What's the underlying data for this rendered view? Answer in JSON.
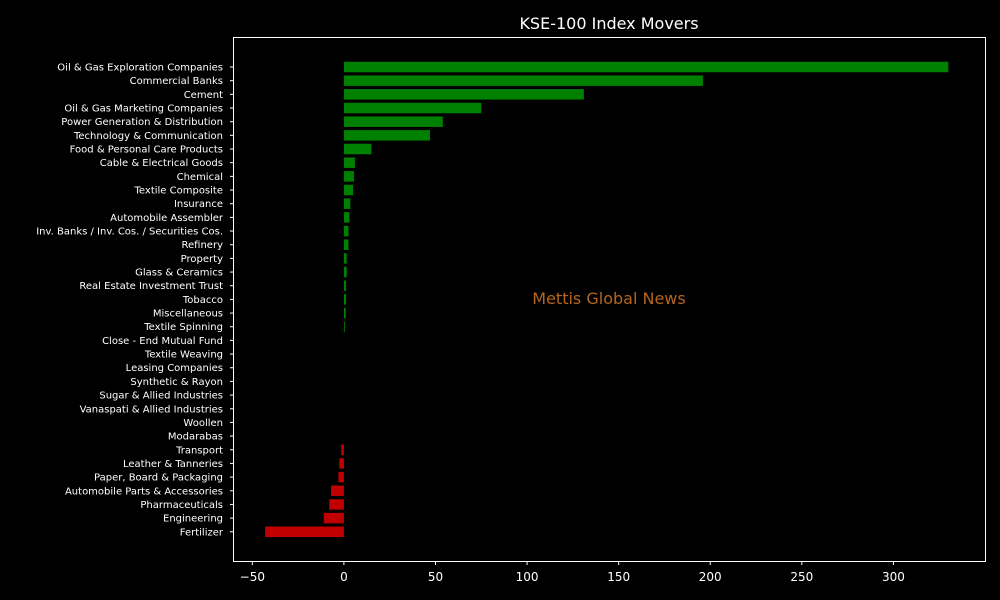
{
  "chart_data": {
    "type": "bar",
    "orientation": "horizontal",
    "title": "KSE-100 Index Movers",
    "xlabel": "",
    "ylabel": "",
    "xlim": [
      -60,
      350
    ],
    "xticks": [
      -50,
      0,
      50,
      100,
      150,
      200,
      250,
      300
    ],
    "xtick_labels": [
      "−50",
      "0",
      "50",
      "100",
      "150",
      "200",
      "250",
      "300"
    ],
    "grid": false,
    "categories": [
      "Oil & Gas Exploration Companies",
      "Commercial Banks",
      "Cement",
      "Oil & Gas Marketing Companies",
      "Power Generation & Distribution",
      "Technology & Communication",
      "Food & Personal Care Products",
      "Cable & Electrical Goods",
      "Chemical",
      "Textile Composite",
      "Insurance",
      "Automobile Assembler",
      "Inv. Banks / Inv. Cos. / Securities Cos.",
      "Refinery",
      "Property",
      "Glass & Ceramics",
      "Real Estate Investment Trust",
      "Tobacco",
      "Miscellaneous",
      "Textile Spinning",
      "Close - End Mutual Fund",
      "Textile Weaving",
      "Leasing Companies",
      "Synthetic & Rayon",
      "Sugar & Allied Industries",
      "Vanaspati & Allied Industries",
      "Woollen",
      "Modarabas",
      "Transport",
      "Leather & Tanneries",
      "Paper, Board & Packaging",
      "Automobile Parts & Accessories",
      "Pharmaceuticals",
      "Engineering",
      "Fertilizer"
    ],
    "values": [
      330,
      196,
      131,
      75,
      54,
      47,
      15,
      6,
      5.5,
      5,
      3.5,
      3,
      2.5,
      2.5,
      1.5,
      1.5,
      1.2,
      1.2,
      1,
      0.5,
      0,
      0,
      0,
      0,
      0,
      0,
      0,
      0,
      -1.5,
      -2.5,
      -3,
      -7,
      -8,
      -11,
      -43
    ],
    "colors": {
      "positive": "#008000",
      "negative": "#c00000"
    },
    "annotation": {
      "text": "Mettis Global News",
      "color": "#b5651d"
    }
  }
}
